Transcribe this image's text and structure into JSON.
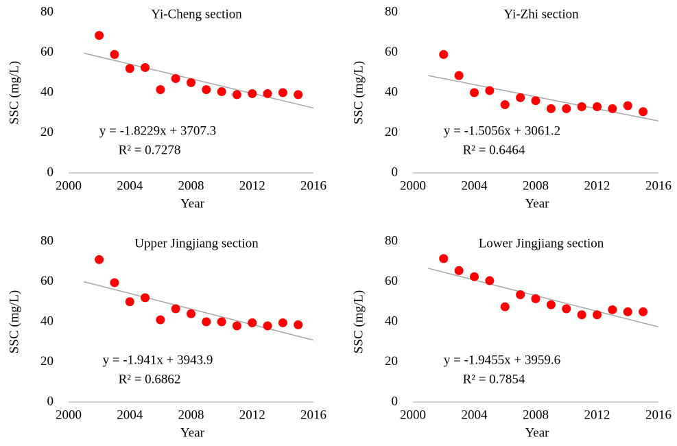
{
  "chart_data": [
    {
      "type": "scatter",
      "title": "Yi-Cheng section",
      "xlabel": "Year",
      "ylabel": "SSC (mg/L)",
      "x": [
        2002,
        2003,
        2004,
        2005,
        2006,
        2007,
        2008,
        2009,
        2010,
        2011,
        2012,
        2013,
        2014,
        2015
      ],
      "values": [
        68.5,
        59,
        52,
        52.5,
        41.5,
        47,
        45,
        41.5,
        40.5,
        39,
        39.5,
        39.5,
        40,
        39
      ],
      "color": "#ff0000",
      "trendline": {
        "slope": -1.8229,
        "intercept": 3707.3,
        "color": "#a6a6a6",
        "equation": "y = -1.8229x + 3707.3",
        "r2_label": "R² = 0.7278"
      },
      "xlim": [
        2000,
        2016
      ],
      "xticks": [
        2000,
        2004,
        2008,
        2012,
        2016
      ],
      "ylim": [
        0,
        80
      ],
      "yticks": [
        0,
        20,
        40,
        60,
        80
      ]
    },
    {
      "type": "scatter",
      "title": "Yi-Zhi section",
      "xlabel": "Year",
      "ylabel": "SSC (mg/L)",
      "x": [
        2002,
        2003,
        2004,
        2005,
        2006,
        2007,
        2008,
        2009,
        2010,
        2011,
        2012,
        2013,
        2014,
        2015
      ],
      "values": [
        59,
        48.5,
        40,
        41,
        34,
        37.5,
        36,
        32,
        32,
        33,
        33,
        32,
        33.5,
        30.5
      ],
      "color": "#ff0000",
      "trendline": {
        "slope": -1.5056,
        "intercept": 3061.2,
        "color": "#a6a6a6",
        "equation": "y = -1.5056x + 3061.2",
        "r2_label": "R² = 0.6464"
      },
      "xlim": [
        2000,
        2016
      ],
      "xticks": [
        2000,
        2004,
        2008,
        2012,
        2016
      ],
      "ylim": [
        0,
        80
      ],
      "yticks": [
        0,
        20,
        40,
        60,
        80
      ]
    },
    {
      "type": "scatter",
      "title": "Upper Jingjiang section",
      "xlabel": "Year",
      "ylabel": "SSC (mg/L)",
      "x": [
        2002,
        2003,
        2004,
        2005,
        2006,
        2007,
        2008,
        2009,
        2010,
        2011,
        2012,
        2013,
        2014,
        2015
      ],
      "values": [
        71,
        59.5,
        50,
        52,
        41,
        46.5,
        44,
        40,
        40,
        38,
        39.5,
        38,
        39.5,
        38.5
      ],
      "color": "#ff0000",
      "trendline": {
        "slope": -1.941,
        "intercept": 3943.9,
        "color": "#a6a6a6",
        "equation": "y = -1.941x + 3943.9",
        "r2_label": "R² = 0.6862"
      },
      "xlim": [
        2000,
        2016
      ],
      "xticks": [
        2000,
        2004,
        2008,
        2012,
        2016
      ],
      "ylim": [
        0,
        80
      ],
      "yticks": [
        0,
        20,
        40,
        60,
        80
      ]
    },
    {
      "type": "scatter",
      "title": "Lower Jingjiang section",
      "xlabel": "Year",
      "ylabel": "SSC (mg/L)",
      "x": [
        2002,
        2003,
        2004,
        2005,
        2006,
        2007,
        2008,
        2009,
        2010,
        2011,
        2012,
        2013,
        2014,
        2015
      ],
      "values": [
        71.5,
        65.5,
        62.5,
        60.5,
        47.5,
        53.5,
        51.5,
        48.5,
        46.5,
        43.5,
        43.5,
        46,
        45,
        45
      ],
      "color": "#ff0000",
      "trendline": {
        "slope": -1.9455,
        "intercept": 3959.6,
        "color": "#a6a6a6",
        "equation": "y = -1.9455x + 3959.6",
        "r2_label": "R² = 0.7854"
      },
      "xlim": [
        2000,
        2016
      ],
      "xticks": [
        2000,
        2004,
        2008,
        2012,
        2016
      ],
      "ylim": [
        0,
        80
      ],
      "yticks": [
        0,
        20,
        40,
        60,
        80
      ]
    }
  ]
}
